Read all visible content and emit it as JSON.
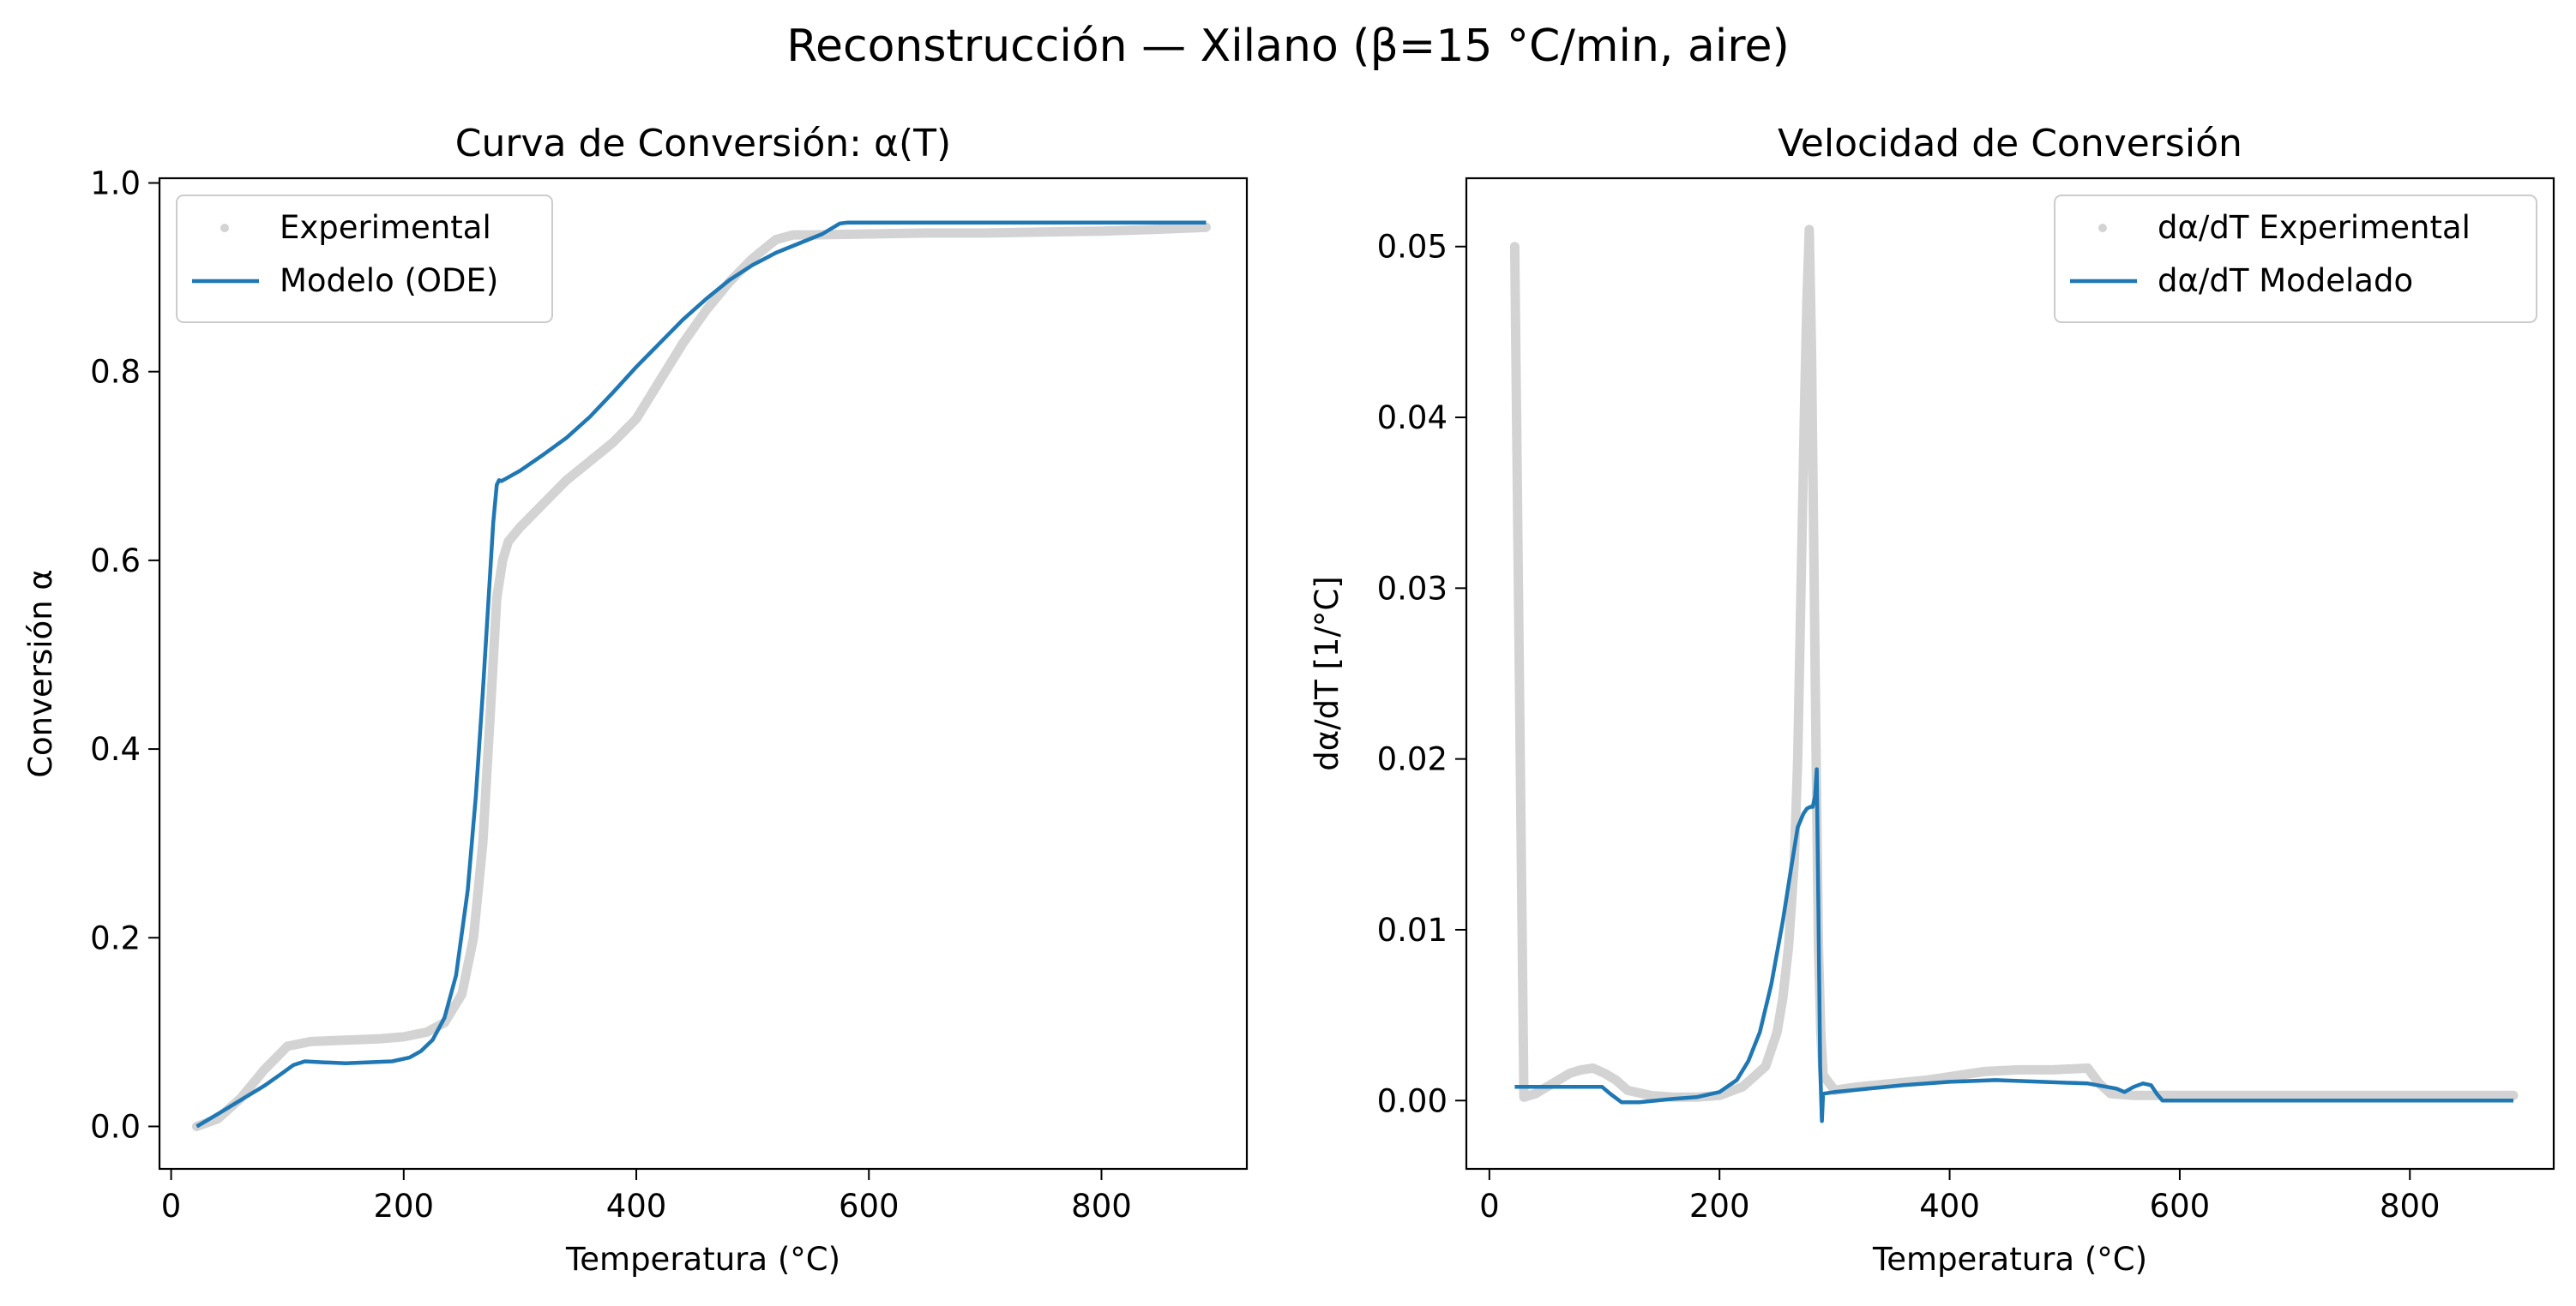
{
  "figure": {
    "title": "Reconstrucción — Xilano (β=15 °C/min, aire)"
  },
  "colors": {
    "experimental": "#d3d3d3",
    "model": "#1f77b4",
    "axes": "#000000",
    "background": "#ffffff"
  },
  "chart_data": [
    {
      "type": "line",
      "title": "Curva de Conversión: α(T)",
      "xlabel": "Temperatura (°C)",
      "ylabel": "Conversión α",
      "xlim": [
        -10,
        925
      ],
      "ylim": [
        -0.045,
        1.005
      ],
      "xticks": [
        0,
        200,
        400,
        600,
        800
      ],
      "yticks": [
        0.0,
        0.2,
        0.4,
        0.6,
        0.8,
        1.0
      ],
      "xtick_labels": [
        "0",
        "200",
        "400",
        "600",
        "800"
      ],
      "ytick_labels": [
        "0.0",
        "0.2",
        "0.4",
        "0.6",
        "0.8",
        "1.0"
      ],
      "grid": false,
      "legend_position": "upper-left",
      "series": [
        {
          "name": "Experimental",
          "style": "scatter",
          "x": [
            22,
            40,
            60,
            80,
            100,
            120,
            140,
            160,
            180,
            200,
            220,
            235,
            250,
            260,
            268,
            275,
            280,
            285,
            290,
            300,
            320,
            340,
            360,
            380,
            400,
            420,
            440,
            460,
            480,
            500,
            520,
            535,
            550,
            600,
            650,
            700,
            750,
            800,
            850,
            890
          ],
          "y": [
            0.0,
            0.008,
            0.03,
            0.06,
            0.085,
            0.09,
            0.091,
            0.092,
            0.093,
            0.095,
            0.1,
            0.11,
            0.14,
            0.2,
            0.3,
            0.45,
            0.56,
            0.6,
            0.62,
            0.635,
            0.66,
            0.685,
            0.705,
            0.725,
            0.75,
            0.79,
            0.83,
            0.865,
            0.895,
            0.92,
            0.94,
            0.945,
            0.945,
            0.946,
            0.947,
            0.947,
            0.948,
            0.949,
            0.951,
            0.953
          ]
        },
        {
          "name": "Modelo (ODE)",
          "style": "line",
          "x": [
            22,
            40,
            60,
            80,
            95,
            105,
            115,
            130,
            150,
            170,
            190,
            205,
            215,
            225,
            235,
            245,
            255,
            262,
            268,
            273,
            277,
            280,
            282,
            284,
            287,
            300,
            320,
            340,
            360,
            380,
            400,
            420,
            440,
            460,
            480,
            500,
            520,
            540,
            560,
            575,
            582,
            600,
            700,
            800,
            890
          ],
          "y": [
            0.0,
            0.013,
            0.028,
            0.043,
            0.056,
            0.065,
            0.069,
            0.068,
            0.067,
            0.068,
            0.069,
            0.073,
            0.08,
            0.092,
            0.115,
            0.16,
            0.25,
            0.35,
            0.46,
            0.56,
            0.64,
            0.68,
            0.685,
            0.684,
            0.686,
            0.695,
            0.712,
            0.73,
            0.752,
            0.778,
            0.805,
            0.83,
            0.855,
            0.877,
            0.897,
            0.913,
            0.926,
            0.936,
            0.946,
            0.957,
            0.958,
            0.958,
            0.958,
            0.958,
            0.958
          ]
        }
      ]
    },
    {
      "type": "line",
      "title": "Velocidad de Conversión",
      "xlabel": "Temperatura (°C)",
      "ylabel": "dα/dT [1/°C]",
      "xlim": [
        -20,
        925
      ],
      "ylim": [
        -0.004,
        0.054
      ],
      "xticks": [
        0,
        200,
        400,
        600,
        800
      ],
      "yticks": [
        0.0,
        0.01,
        0.02,
        0.03,
        0.04,
        0.05
      ],
      "xtick_labels": [
        "0",
        "200",
        "400",
        "600",
        "800"
      ],
      "ytick_labels": [
        "0.00",
        "0.01",
        "0.02",
        "0.03",
        "0.04",
        "0.05"
      ],
      "grid": false,
      "legend_position": "upper-right",
      "series": [
        {
          "name": "dα/dT Experimental",
          "style": "scatter",
          "x": [
            22,
            30,
            40,
            50,
            60,
            70,
            80,
            90,
            100,
            110,
            120,
            140,
            160,
            180,
            200,
            220,
            240,
            250,
            255,
            260,
            265,
            268,
            270,
            272,
            274,
            276,
            278,
            280,
            282,
            284,
            286,
            288,
            290,
            300,
            320,
            350,
            380,
            400,
            430,
            460,
            490,
            520,
            530,
            540,
            560,
            580,
            620,
            700,
            800,
            890
          ],
          "y": [
            0.05,
            0.0002,
            0.0004,
            0.0008,
            0.0012,
            0.0016,
            0.0018,
            0.0019,
            0.0016,
            0.0012,
            0.0006,
            0.0003,
            0.0002,
            0.0002,
            0.0003,
            0.0008,
            0.002,
            0.004,
            0.006,
            0.009,
            0.014,
            0.02,
            0.027,
            0.034,
            0.041,
            0.047,
            0.051,
            0.044,
            0.032,
            0.02,
            0.009,
            0.004,
            0.0015,
            0.0006,
            0.0008,
            0.001,
            0.0012,
            0.0014,
            0.0017,
            0.0018,
            0.0018,
            0.0019,
            0.001,
            0.0004,
            0.0003,
            0.0003,
            0.0003,
            0.0003,
            0.0003,
            0.0003
          ]
        },
        {
          "name": "dα/dT Modelado",
          "style": "line",
          "x": [
            22,
            60,
            98,
            105,
            115,
            130,
            145,
            160,
            180,
            200,
            215,
            225,
            235,
            245,
            255,
            262,
            268,
            273,
            276,
            279,
            281,
            283,
            284.5,
            286,
            287.5,
            289,
            290,
            300,
            330,
            360,
            400,
            440,
            480,
            520,
            545,
            552,
            560,
            568,
            575,
            580,
            585,
            600,
            700,
            800,
            890
          ],
          "y": [
            0.0008,
            0.0008,
            0.0008,
            0.0004,
            -0.0001,
            -0.0001,
            0.0,
            0.0001,
            0.0002,
            0.0005,
            0.0012,
            0.0023,
            0.004,
            0.0068,
            0.0105,
            0.0135,
            0.016,
            0.0168,
            0.0171,
            0.0172,
            0.0172,
            0.0178,
            0.0194,
            0.011,
            0.002,
            -0.0012,
            0.0004,
            0.0005,
            0.0007,
            0.0009,
            0.0011,
            0.0012,
            0.0011,
            0.001,
            0.0007,
            0.0005,
            0.0008,
            0.001,
            0.0009,
            0.0004,
            0.0,
            0.0,
            0.0,
            0.0,
            0.0
          ]
        }
      ]
    }
  ]
}
